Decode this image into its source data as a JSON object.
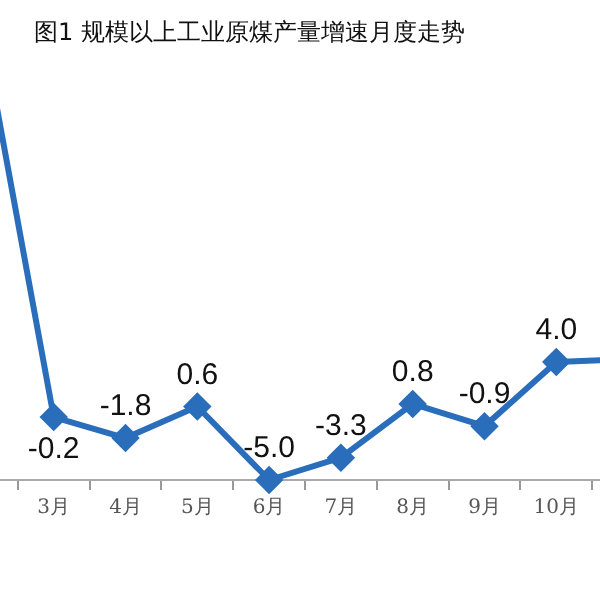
{
  "chart_data": {
    "type": "line",
    "title": "图1  规模以上工业原煤产量增速月度走势",
    "categories": [
      null,
      "3月",
      "4月",
      "5月",
      "6月",
      "7月",
      "8月",
      "9月",
      "10月",
      null
    ],
    "series": [
      {
        "color": "#2a6ebb",
        "values": [
          29.6,
          -0.2,
          -1.8,
          0.6,
          -5.0,
          -3.3,
          0.8,
          -0.9,
          4.0,
          4.2
        ],
        "value_labels": [
          null,
          "-0.2",
          "-1.8",
          "0.6",
          "-5.0",
          "-3.3",
          "0.8",
          "-0.9",
          "4.0",
          null
        ]
      }
    ],
    "marker": "diamond",
    "line_style": "solid",
    "grid": false,
    "legend": false
  }
}
